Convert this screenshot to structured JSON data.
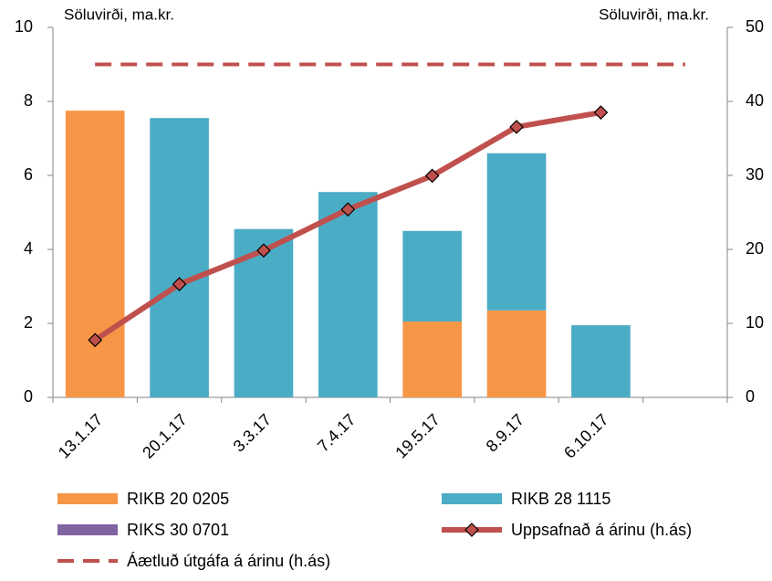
{
  "chart_data": {
    "type": "bar",
    "y_label": "Söluvirði, ma.kr.",
    "y2_label": "Söluvirði, ma.kr.",
    "categories": [
      "13.1.17",
      "20.1.17",
      "3.3.17",
      "7.4.17",
      "19.5.17",
      "8.9.17",
      "6.10.17",
      null
    ],
    "series": [
      {
        "name": "RIKB 20 0205",
        "type": "bar",
        "color": "#f79646",
        "values": [
          7.75,
          0,
          0,
          0,
          2.05,
          2.35,
          0,
          null
        ]
      },
      {
        "name": "RIKB 28 1115",
        "type": "bar",
        "color": "#4bacc6",
        "values": [
          0,
          7.55,
          4.55,
          5.55,
          2.45,
          4.25,
          1.95,
          null
        ]
      },
      {
        "name": "RIKS 30 0701",
        "type": "bar",
        "color": "#8064a2",
        "values": [
          0,
          0,
          0,
          0,
          0,
          0,
          0,
          null
        ]
      },
      {
        "name": "Uppsafnað á árinu (h.ás)",
        "type": "line",
        "axis": "y2",
        "color": "#c0504d",
        "marker": "diamond",
        "values": [
          7.75,
          15.3,
          19.85,
          25.4,
          29.95,
          36.55,
          38.5,
          null
        ]
      },
      {
        "name": "Áætluð útgáfa á árinu (h.ás)",
        "type": "line",
        "axis": "y2",
        "color": "#c0504d",
        "dashed": true,
        "values": [
          45,
          45,
          45,
          45,
          45,
          45,
          45,
          45
        ]
      }
    ],
    "ylim": [
      0,
      10
    ],
    "yticks": [
      0,
      2,
      4,
      6,
      8,
      10
    ],
    "y2lim": [
      0,
      50
    ],
    "y2ticks": [
      0,
      10,
      20,
      30,
      40,
      50
    ]
  }
}
